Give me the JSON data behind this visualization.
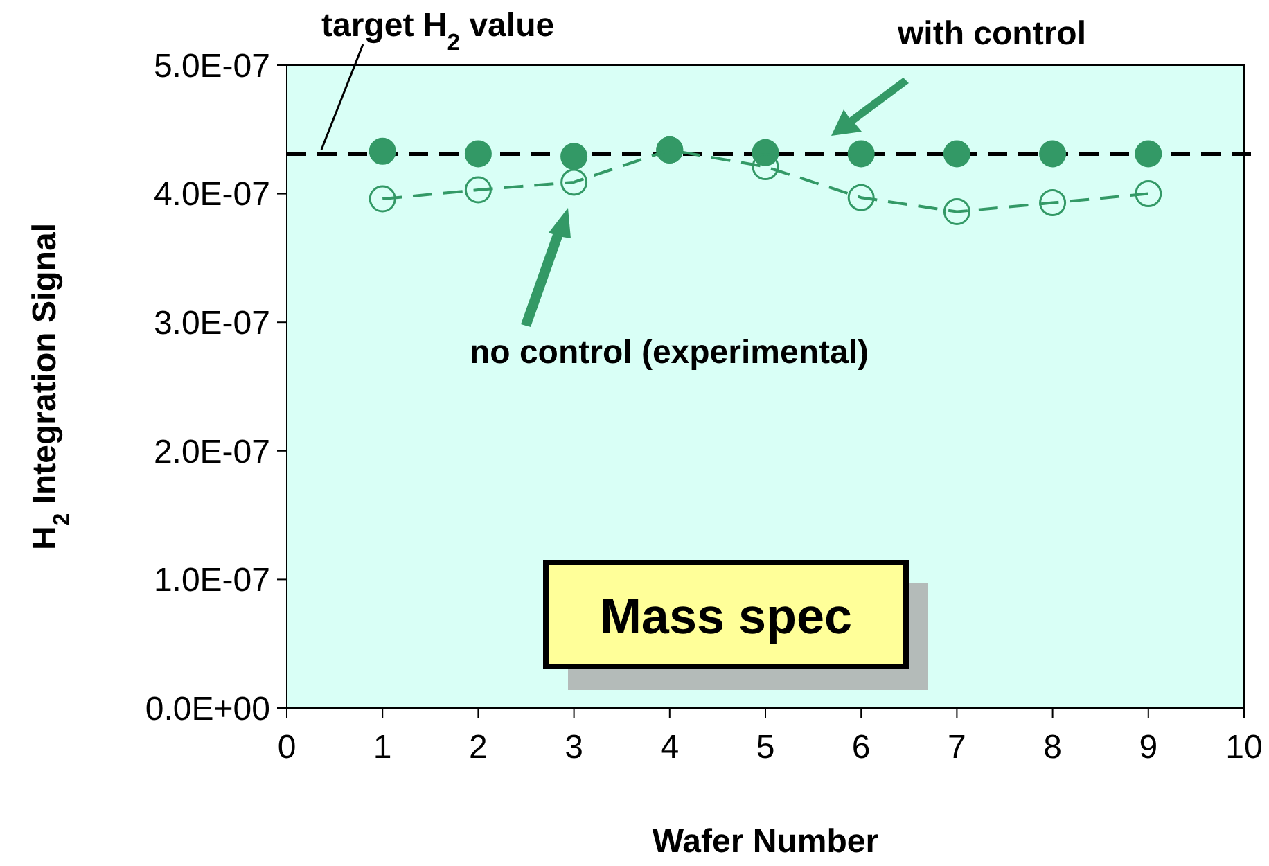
{
  "chart_data": {
    "type": "line",
    "xlabel": "Wafer Number",
    "ylabel": "H$_{2}$ Integration Signal",
    "x": [
      1,
      2,
      3,
      4,
      5,
      6,
      7,
      8,
      9
    ],
    "series": [
      {
        "type": "scatter",
        "color": "#339966",
        "marker": "circle",
        "values": [
          4.33e-07,
          4.31e-07,
          4.29e-07,
          4.34e-07,
          4.32e-07,
          4.31e-07,
          4.31e-07,
          4.31e-07,
          4.31e-07
        ]
      },
      {
        "color": "#339966",
        "marker": "circle",
        "line_style": "dashed",
        "values": [
          3.96e-07,
          4.03e-07,
          4.09e-07,
          4.34e-07,
          4.21e-07,
          3.97e-07,
          3.86e-07,
          3.93e-07,
          4e-07
        ]
      }
    ],
    "xlim": [
      0,
      10
    ],
    "xticks": [
      0,
      1,
      2,
      3,
      4,
      5,
      6,
      7,
      8,
      9,
      10
    ],
    "ylim": [
      0,
      5e-07
    ],
    "yticks": [
      {
        "value": 0,
        "label": "0.0E+00"
      },
      {
        "value": 1e-07,
        "label": "1.0E-07"
      },
      {
        "value": 2e-07,
        "label": "2.0E-07"
      },
      {
        "value": 3e-07,
        "label": "3.0E-07"
      },
      {
        "value": 4e-07,
        "label": "4.0E-07"
      },
      {
        "value": 5e-07,
        "label": "5.0E-07"
      }
    ],
    "ref_lines": [
      {
        "axis": "y",
        "value": 4.31e-07,
        "label": "target H$_{2}$ value",
        "color": "#000000",
        "line_style": "dashed"
      }
    ],
    "annotations": [
      "with control",
      "no control (experimental)",
      "Mass spec"
    ],
    "grid": false
  }
}
